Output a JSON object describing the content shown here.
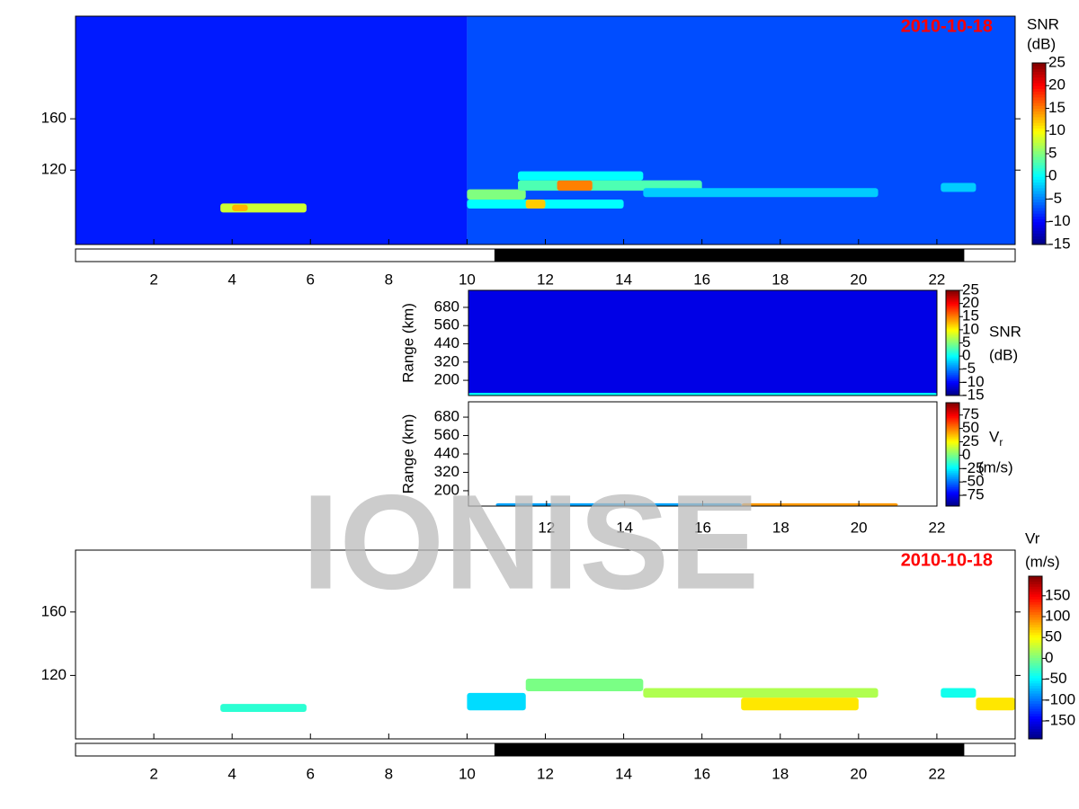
{
  "watermark": "IONISE",
  "chart_data": [
    {
      "type": "heatmap",
      "date_label": "2010-10-18",
      "colorbar_label": [
        "SNR",
        "(dB)"
      ],
      "xlim": [
        0,
        24
      ],
      "xticks": [
        2,
        4,
        6,
        8,
        10,
        12,
        14,
        16,
        18,
        20,
        22
      ],
      "ylim": [
        62,
        240
      ],
      "yticks": [
        120,
        160
      ],
      "clim": [
        -15,
        25
      ],
      "cticks": [
        -15,
        -10,
        -5,
        0,
        5,
        10,
        15,
        20,
        25
      ],
      "night": [
        10.7,
        22.7
      ],
      "background": [
        {
          "x": [
            0,
            10
          ],
          "value": -9
        },
        {
          "x": [
            10,
            24
          ],
          "value": -7
        }
      ],
      "patches": [
        {
          "x": [
            3.7,
            5.9
          ],
          "y": [
            87,
            94
          ],
          "value": 8
        },
        {
          "x": [
            4.0,
            4.4
          ],
          "y": [
            88,
            93
          ],
          "value": 13
        },
        {
          "x": [
            10,
            11.5
          ],
          "y": [
            97,
            105
          ],
          "value": 5
        },
        {
          "x": [
            10,
            14
          ],
          "y": [
            90,
            97
          ],
          "value": 0
        },
        {
          "x": [
            11.5,
            12
          ],
          "y": [
            90,
            97
          ],
          "value": 12
        },
        {
          "x": [
            11.3,
            16
          ],
          "y": [
            104,
            112
          ],
          "value": 3
        },
        {
          "x": [
            12.3,
            13.2
          ],
          "y": [
            104,
            112
          ],
          "value": 15
        },
        {
          "x": [
            11.3,
            14.5
          ],
          "y": [
            112,
            119
          ],
          "value": 0
        },
        {
          "x": [
            14.5,
            20.5
          ],
          "y": [
            99,
            106
          ],
          "value": -2
        },
        {
          "x": [
            22.1,
            23
          ],
          "y": [
            103,
            110
          ],
          "value": -2
        }
      ]
    },
    {
      "type": "heatmap",
      "ylabel": "Range (km)",
      "colorbar_label": [
        "SNR",
        "(dB)"
      ],
      "xlim": [
        10,
        22
      ],
      "ylim": [
        100,
        792
      ],
      "yticks": [
        200,
        320,
        440,
        560,
        680
      ],
      "clim": [
        -15,
        25
      ],
      "cticks": [
        -15,
        -10,
        -5,
        0,
        5,
        10,
        15,
        20,
        25
      ],
      "background": [
        {
          "x": [
            10,
            22
          ],
          "value": -11
        }
      ],
      "patches": [
        {
          "x": [
            10,
            22
          ],
          "y": [
            100,
            118
          ],
          "value": 0
        }
      ]
    },
    {
      "type": "heatmap",
      "ylabel": "Range (km)",
      "colorbar_label": [
        "V",
        "(m/s)"
      ],
      "colorbar_subscript": "r",
      "xlim": [
        10,
        22
      ],
      "xticks": [
        12,
        14,
        16,
        18,
        20,
        22
      ],
      "ylim": [
        100,
        780
      ],
      "yticks": [
        200,
        320,
        440,
        560,
        680
      ],
      "clim": [
        -95,
        98
      ],
      "cticks": [
        -75,
        -50,
        -25,
        0,
        25,
        50,
        75
      ],
      "patches": [
        {
          "x": [
            10.7,
            17
          ],
          "y": [
            100,
            118
          ],
          "value": -40
        },
        {
          "x": [
            17,
            21
          ],
          "y": [
            100,
            118
          ],
          "value": 45
        }
      ]
    },
    {
      "type": "heatmap",
      "date_label": "2010-10-18",
      "colorbar_label": [
        "Vr",
        "(m/s)"
      ],
      "xlim": [
        0,
        24
      ],
      "xticks": [
        2,
        4,
        6,
        8,
        10,
        12,
        14,
        16,
        18,
        20,
        22
      ],
      "ylim": [
        80,
        199
      ],
      "yticks": [
        120,
        160
      ],
      "clim": [
        -193,
        197
      ],
      "cticks": [
        -150,
        -100,
        -50,
        0,
        50,
        100,
        150
      ],
      "night": [
        10.7,
        22.7
      ],
      "patches": [
        {
          "x": [
            3.7,
            5.9
          ],
          "y": [
            97,
            102
          ],
          "value": -30
        },
        {
          "x": [
            10,
            11.5
          ],
          "y": [
            98,
            109
          ],
          "value": -60
        },
        {
          "x": [
            11.5,
            14.5
          ],
          "y": [
            110,
            118
          ],
          "value": 0
        },
        {
          "x": [
            14.5,
            20.5
          ],
          "y": [
            106,
            112
          ],
          "value": 20
        },
        {
          "x": [
            17,
            20
          ],
          "y": [
            98,
            106
          ],
          "value": 60
        },
        {
          "x": [
            22.1,
            23
          ],
          "y": [
            106,
            112
          ],
          "value": -40
        },
        {
          "x": [
            23,
            24
          ],
          "y": [
            98,
            106
          ],
          "value": 60
        }
      ]
    }
  ]
}
